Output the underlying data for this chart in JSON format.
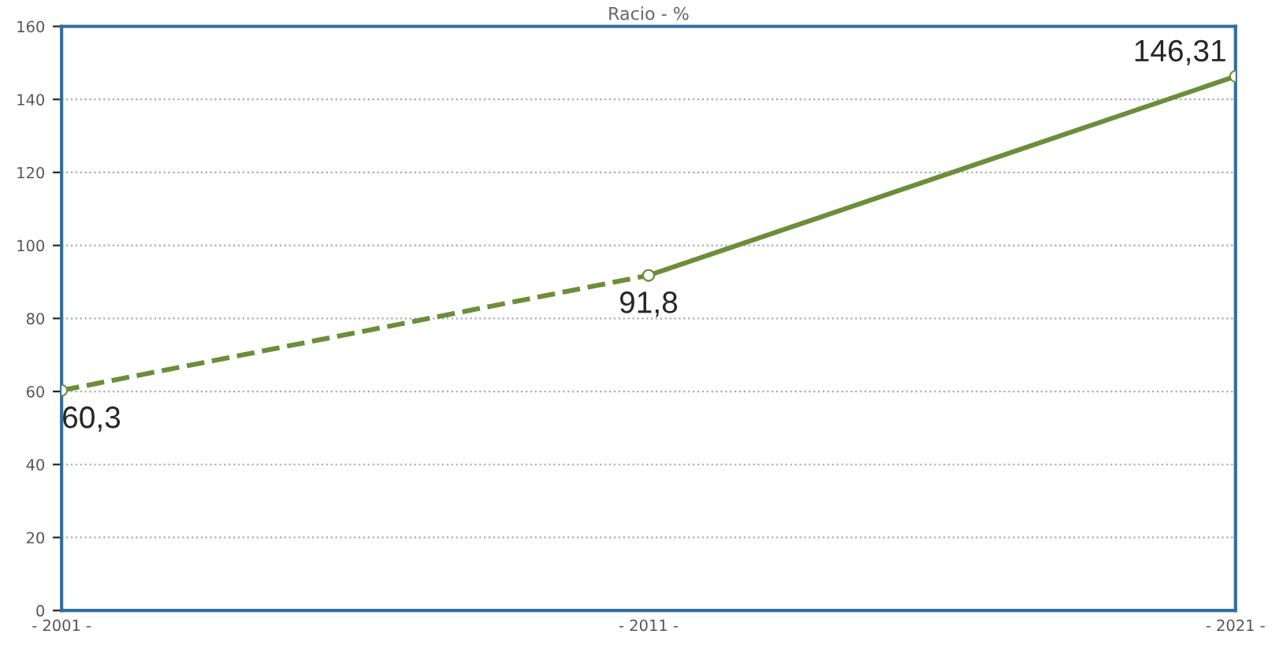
{
  "chart_data": {
    "type": "line",
    "title": "Racio - %",
    "categories": [
      "- 2001 -",
      "- 2011 -",
      "- 2021 -"
    ],
    "ylim": [
      0,
      160
    ],
    "yticks": [
      0,
      20,
      40,
      60,
      80,
      100,
      120,
      140,
      160
    ],
    "grid": "y",
    "marker": "circle",
    "series": [
      {
        "color": "#6b8e3a",
        "values": [
          60.3,
          91.8,
          null
        ],
        "line_style": "dashed",
        "value_labels": [
          "60,3",
          "91,8",
          null
        ]
      },
      {
        "color": "#6b8e3a",
        "values": [
          null,
          91.8,
          146.31
        ],
        "line_style": "solid",
        "value_labels": [
          null,
          null,
          "146,31"
        ]
      }
    ]
  }
}
